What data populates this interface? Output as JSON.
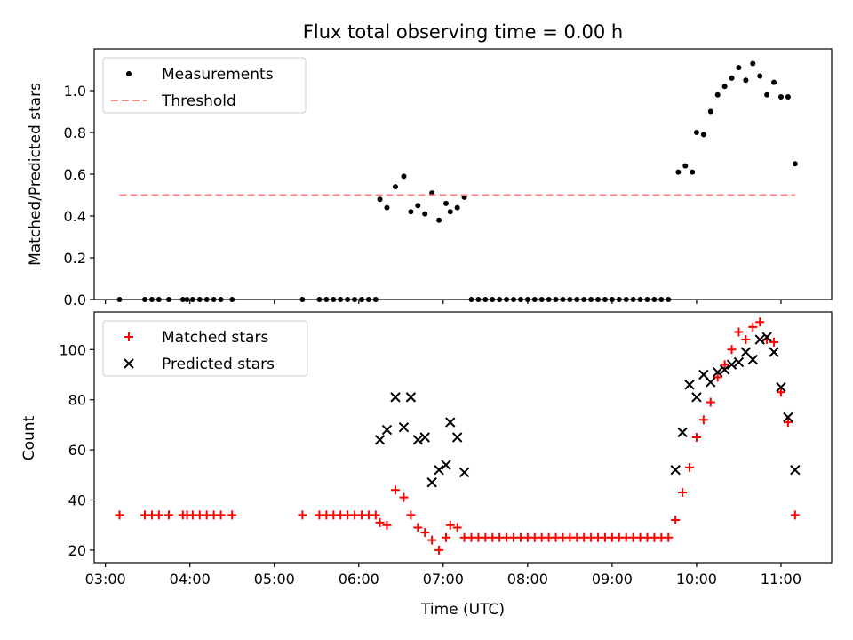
{
  "chart_data": [
    {
      "type": "scatter",
      "title": "Flux total observing time = 0.00 h",
      "xlabel": "",
      "ylabel": "Matched/Predicted stars",
      "xlim": [
        "02:52",
        "11:36"
      ],
      "ylim": [
        0,
        1.2
      ],
      "yticks": [
        "0.0",
        "0.2",
        "0.4",
        "0.6",
        "0.8",
        "1.0"
      ],
      "grid": false,
      "legend_placement": "upper-left",
      "series": [
        {
          "name": "Measurements",
          "marker": "dot",
          "color": "#000000",
          "points": [
            [
              "03:10",
              0
            ],
            [
              "03:28",
              0
            ],
            [
              "03:33",
              0
            ],
            [
              "03:38",
              0
            ],
            [
              "03:45",
              0
            ],
            [
              "03:55",
              0
            ],
            [
              "03:58",
              0
            ],
            [
              "04:02",
              0
            ],
            [
              "04:07",
              0
            ],
            [
              "04:12",
              0
            ],
            [
              "04:17",
              0
            ],
            [
              "04:22",
              0
            ],
            [
              "04:30",
              0
            ],
            [
              "05:20",
              0
            ],
            [
              "05:32",
              0
            ],
            [
              "05:37",
              0
            ],
            [
              "05:42",
              0
            ],
            [
              "05:47",
              0
            ],
            [
              "05:52",
              0
            ],
            [
              "05:57",
              0
            ],
            [
              "06:02",
              0
            ],
            [
              "06:07",
              0
            ],
            [
              "06:12",
              0
            ],
            [
              "06:15",
              0.48
            ],
            [
              "06:20",
              0.44
            ],
            [
              "06:26",
              0.54
            ],
            [
              "06:32",
              0.59
            ],
            [
              "06:37",
              0.42
            ],
            [
              "06:42",
              0.45
            ],
            [
              "06:47",
              0.41
            ],
            [
              "06:52",
              0.51
            ],
            [
              "06:57",
              0.38
            ],
            [
              "07:02",
              0.46
            ],
            [
              "07:05",
              0.42
            ],
            [
              "07:10",
              0.44
            ],
            [
              "07:15",
              0.49
            ],
            [
              "07:20",
              0
            ],
            [
              "07:25",
              0
            ],
            [
              "07:30",
              0
            ],
            [
              "07:35",
              0
            ],
            [
              "07:40",
              0
            ],
            [
              "07:45",
              0
            ],
            [
              "07:50",
              0
            ],
            [
              "07:55",
              0
            ],
            [
              "08:00",
              0
            ],
            [
              "08:05",
              0
            ],
            [
              "08:10",
              0
            ],
            [
              "08:15",
              0
            ],
            [
              "08:20",
              0
            ],
            [
              "08:25",
              0
            ],
            [
              "08:30",
              0
            ],
            [
              "08:35",
              0
            ],
            [
              "08:40",
              0
            ],
            [
              "08:45",
              0
            ],
            [
              "08:50",
              0
            ],
            [
              "08:55",
              0
            ],
            [
              "09:00",
              0
            ],
            [
              "09:05",
              0
            ],
            [
              "09:10",
              0
            ],
            [
              "09:15",
              0
            ],
            [
              "09:20",
              0
            ],
            [
              "09:25",
              0
            ],
            [
              "09:30",
              0
            ],
            [
              "09:35",
              0
            ],
            [
              "09:40",
              0
            ],
            [
              "09:47",
              0.61
            ],
            [
              "09:52",
              0.64
            ],
            [
              "09:57",
              0.61
            ],
            [
              "10:00",
              0.8
            ],
            [
              "10:05",
              0.79
            ],
            [
              "10:10",
              0.9
            ],
            [
              "10:15",
              0.98
            ],
            [
              "10:20",
              1.02
            ],
            [
              "10:25",
              1.06
            ],
            [
              "10:30",
              1.11
            ],
            [
              "10:35",
              1.05
            ],
            [
              "10:40",
              1.13
            ],
            [
              "10:45",
              1.07
            ],
            [
              "10:50",
              0.98
            ],
            [
              "10:55",
              1.04
            ],
            [
              "11:00",
              0.97
            ],
            [
              "11:05",
              0.97
            ],
            [
              "11:10",
              0.65
            ]
          ]
        },
        {
          "name": "Threshold",
          "marker": "dashed-line",
          "color": "#ff7f7f",
          "points": [
            [
              "03:10",
              0.5
            ],
            [
              "11:10",
              0.5
            ]
          ]
        }
      ]
    },
    {
      "type": "scatter",
      "title": "",
      "xlabel": "Time (UTC)",
      "ylabel": "Count",
      "xlim": [
        "02:52",
        "11:36"
      ],
      "ylim": [
        15,
        115
      ],
      "yticks": [
        "20",
        "40",
        "60",
        "80",
        "100"
      ],
      "xticks": [
        "03:00",
        "04:00",
        "05:00",
        "06:00",
        "07:00",
        "08:00",
        "09:00",
        "10:00",
        "11:00"
      ],
      "grid": false,
      "legend_placement": "upper-left",
      "series": [
        {
          "name": "Matched stars",
          "marker": "plus",
          "color": "#ff0000",
          "points": [
            [
              "03:10",
              34
            ],
            [
              "03:28",
              34
            ],
            [
              "03:33",
              34
            ],
            [
              "03:38",
              34
            ],
            [
              "03:45",
              34
            ],
            [
              "03:55",
              34
            ],
            [
              "03:58",
              34
            ],
            [
              "04:02",
              34
            ],
            [
              "04:07",
              34
            ],
            [
              "04:12",
              34
            ],
            [
              "04:17",
              34
            ],
            [
              "04:22",
              34
            ],
            [
              "04:30",
              34
            ],
            [
              "05:20",
              34
            ],
            [
              "05:32",
              34
            ],
            [
              "05:37",
              34
            ],
            [
              "05:42",
              34
            ],
            [
              "05:47",
              34
            ],
            [
              "05:52",
              34
            ],
            [
              "05:57",
              34
            ],
            [
              "06:02",
              34
            ],
            [
              "06:07",
              34
            ],
            [
              "06:12",
              34
            ],
            [
              "06:15",
              31
            ],
            [
              "06:20",
              30
            ],
            [
              "06:26",
              44
            ],
            [
              "06:32",
              41
            ],
            [
              "06:37",
              34
            ],
            [
              "06:42",
              29
            ],
            [
              "06:47",
              27
            ],
            [
              "06:52",
              24
            ],
            [
              "06:57",
              20
            ],
            [
              "07:02",
              25
            ],
            [
              "07:05",
              30
            ],
            [
              "07:10",
              29
            ],
            [
              "07:15",
              25
            ],
            [
              "07:20",
              25
            ],
            [
              "07:25",
              25
            ],
            [
              "07:30",
              25
            ],
            [
              "07:35",
              25
            ],
            [
              "07:40",
              25
            ],
            [
              "07:45",
              25
            ],
            [
              "07:50",
              25
            ],
            [
              "07:55",
              25
            ],
            [
              "08:00",
              25
            ],
            [
              "08:05",
              25
            ],
            [
              "08:10",
              25
            ],
            [
              "08:15",
              25
            ],
            [
              "08:20",
              25
            ],
            [
              "08:25",
              25
            ],
            [
              "08:30",
              25
            ],
            [
              "08:35",
              25
            ],
            [
              "08:40",
              25
            ],
            [
              "08:45",
              25
            ],
            [
              "08:50",
              25
            ],
            [
              "08:55",
              25
            ],
            [
              "09:00",
              25
            ],
            [
              "09:05",
              25
            ],
            [
              "09:10",
              25
            ],
            [
              "09:15",
              25
            ],
            [
              "09:20",
              25
            ],
            [
              "09:25",
              25
            ],
            [
              "09:30",
              25
            ],
            [
              "09:35",
              25
            ],
            [
              "09:40",
              25
            ],
            [
              "09:45",
              32
            ],
            [
              "09:50",
              43
            ],
            [
              "09:55",
              53
            ],
            [
              "10:00",
              65
            ],
            [
              "10:05",
              72
            ],
            [
              "10:10",
              79
            ],
            [
              "10:15",
              89
            ],
            [
              "10:20",
              94
            ],
            [
              "10:25",
              100
            ],
            [
              "10:30",
              107
            ],
            [
              "10:35",
              104
            ],
            [
              "10:40",
              109
            ],
            [
              "10:45",
              111
            ],
            [
              "10:50",
              104
            ],
            [
              "10:55",
              103
            ],
            [
              "11:00",
              83
            ],
            [
              "11:05",
              71
            ],
            [
              "11:10",
              34
            ]
          ]
        },
        {
          "name": "Predicted stars",
          "marker": "x",
          "color": "#000000",
          "points": [
            [
              "06:15",
              64
            ],
            [
              "06:20",
              68
            ],
            [
              "06:26",
              81
            ],
            [
              "06:32",
              69
            ],
            [
              "06:37",
              81
            ],
            [
              "06:42",
              64
            ],
            [
              "06:47",
              65
            ],
            [
              "06:52",
              47
            ],
            [
              "06:57",
              52
            ],
            [
              "07:02",
              54
            ],
            [
              "07:05",
              71
            ],
            [
              "07:10",
              65
            ],
            [
              "07:15",
              51
            ],
            [
              "09:45",
              52
            ],
            [
              "09:50",
              67
            ],
            [
              "09:55",
              86
            ],
            [
              "10:00",
              81
            ],
            [
              "10:05",
              90
            ],
            [
              "10:10",
              87
            ],
            [
              "10:15",
              91
            ],
            [
              "10:20",
              92
            ],
            [
              "10:25",
              94
            ],
            [
              "10:30",
              95
            ],
            [
              "10:35",
              99
            ],
            [
              "10:40",
              96
            ],
            [
              "10:45",
              104
            ],
            [
              "10:50",
              105
            ],
            [
              "10:55",
              99
            ],
            [
              "11:00",
              85
            ],
            [
              "11:05",
              73
            ],
            [
              "11:10",
              52
            ]
          ]
        }
      ]
    }
  ]
}
